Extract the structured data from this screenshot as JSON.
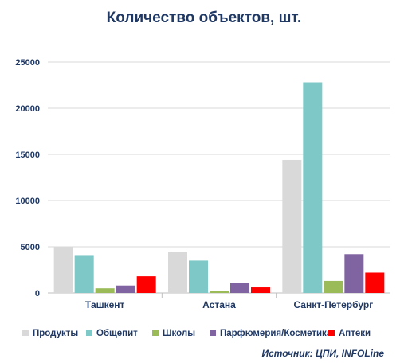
{
  "chart_data": {
    "type": "bar",
    "title": "Количество объектов, шт.",
    "xlabel": "",
    "ylabel": "",
    "categories": [
      "Ташкент",
      "Астана",
      "Санкт-Петербург"
    ],
    "ylim": [
      0,
      25000
    ],
    "yticks": [
      "0",
      "5000",
      "10000",
      "15000",
      "20000",
      "25000"
    ],
    "grid": true,
    "legend_position": "bottom",
    "series": [
      {
        "name": "Продукты",
        "color": "#d9d9d9",
        "values": [
          5000,
          4400,
          14400
        ]
      },
      {
        "name": "Общепит",
        "color": "#7ec8c8",
        "values": [
          4100,
          3500,
          22800
        ]
      },
      {
        "name": "Школы",
        "color": "#9bbb59",
        "values": [
          500,
          200,
          1300
        ]
      },
      {
        "name": "Парфюмерия/Косметика",
        "color": "#8064a2",
        "values": [
          800,
          1100,
          4200
        ]
      },
      {
        "name": "Аптеки",
        "color": "#ff0000",
        "values": [
          1800,
          600,
          2200
        ]
      }
    ],
    "source": "Источник: ЦПИ, INFOLine"
  }
}
